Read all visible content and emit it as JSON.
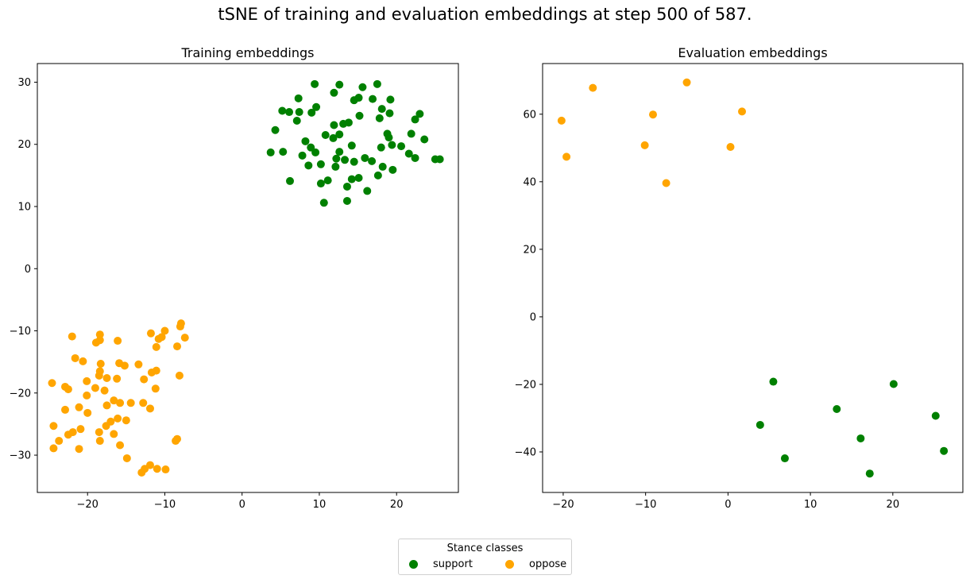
{
  "figure": {
    "suptitle": "tSNE of training and evaluation embeddings at step 500 of 587."
  },
  "legend": {
    "title": "Stance classes",
    "entries": [
      {
        "label": "support",
        "color": "#008000"
      },
      {
        "label": "oppose",
        "color": "#FFA500"
      }
    ]
  },
  "chart_data": [
    {
      "type": "scatter",
      "title": "Training embeddings",
      "xlim": [
        -26.5,
        28
      ],
      "ylim": [
        -36,
        33
      ],
      "xticks": [
        -20,
        -10,
        0,
        10,
        20
      ],
      "yticks": [
        -30,
        -20,
        -10,
        0,
        10,
        20,
        30
      ],
      "grid": false,
      "series": [
        {
          "name": "support",
          "color": "#008000",
          "points": [
            [
              9.4,
              29.7
            ],
            [
              12.6,
              29.6
            ],
            [
              15.6,
              29.2
            ],
            [
              17.5,
              29.7
            ],
            [
              11.9,
              28.3
            ],
            [
              7.3,
              27.4
            ],
            [
              14.5,
              27.1
            ],
            [
              15.1,
              27.5
            ],
            [
              16.9,
              27.3
            ],
            [
              19.2,
              27.2
            ],
            [
              5.2,
              25.4
            ],
            [
              6.1,
              25.2
            ],
            [
              7.4,
              25.2
            ],
            [
              9.0,
              25.1
            ],
            [
              9.6,
              26.0
            ],
            [
              18.1,
              25.7
            ],
            [
              19.1,
              25.0
            ],
            [
              23.0,
              24.9
            ],
            [
              15.2,
              24.6
            ],
            [
              17.8,
              24.2
            ],
            [
              7.1,
              23.8
            ],
            [
              4.3,
              22.3
            ],
            [
              13.1,
              23.3
            ],
            [
              13.8,
              23.5
            ],
            [
              11.9,
              23.1
            ],
            [
              22.4,
              24.0
            ],
            [
              10.8,
              21.5
            ],
            [
              12.6,
              21.6
            ],
            [
              11.8,
              21.0
            ],
            [
              18.8,
              21.7
            ],
            [
              19.0,
              21.1
            ],
            [
              21.9,
              21.7
            ],
            [
              23.6,
              20.8
            ],
            [
              8.2,
              20.5
            ],
            [
              3.7,
              18.7
            ],
            [
              5.3,
              18.8
            ],
            [
              8.9,
              19.5
            ],
            [
              9.5,
              18.7
            ],
            [
              14.2,
              19.8
            ],
            [
              18.0,
              19.5
            ],
            [
              19.4,
              19.9
            ],
            [
              20.6,
              19.7
            ],
            [
              21.6,
              18.5
            ],
            [
              22.4,
              17.8
            ],
            [
              7.8,
              18.2
            ],
            [
              12.6,
              18.8
            ],
            [
              12.2,
              17.7
            ],
            [
              13.3,
              17.5
            ],
            [
              14.5,
              17.2
            ],
            [
              15.9,
              17.8
            ],
            [
              16.8,
              17.3
            ],
            [
              8.6,
              16.6
            ],
            [
              10.2,
              16.8
            ],
            [
              12.1,
              16.4
            ],
            [
              18.2,
              16.4
            ],
            [
              19.5,
              15.9
            ],
            [
              25.0,
              17.6
            ],
            [
              25.6,
              17.6
            ],
            [
              6.2,
              14.1
            ],
            [
              11.1,
              14.2
            ],
            [
              14.2,
              14.4
            ],
            [
              15.1,
              14.6
            ],
            [
              17.6,
              15.0
            ],
            [
              10.2,
              13.7
            ],
            [
              13.6,
              13.2
            ],
            [
              16.2,
              12.5
            ],
            [
              10.6,
              10.6
            ],
            [
              13.6,
              10.9
            ]
          ]
        },
        {
          "name": "oppose",
          "color": "#FFA500",
          "points": [
            [
              -7.9,
              -8.8
            ],
            [
              -8.0,
              -9.3
            ],
            [
              -10.0,
              -10.0
            ],
            [
              -18.4,
              -10.6
            ],
            [
              -11.8,
              -10.4
            ],
            [
              -7.4,
              -11.1
            ],
            [
              -22.0,
              -10.9
            ],
            [
              -10.4,
              -11.0
            ],
            [
              -10.8,
              -11.3
            ],
            [
              -18.4,
              -11.5
            ],
            [
              -18.9,
              -11.9
            ],
            [
              -16.1,
              -11.6
            ],
            [
              -11.1,
              -12.6
            ],
            [
              -8.4,
              -12.5
            ],
            [
              -21.6,
              -14.4
            ],
            [
              -20.6,
              -14.9
            ],
            [
              -15.9,
              -15.2
            ],
            [
              -15.2,
              -15.6
            ],
            [
              -13.4,
              -15.4
            ],
            [
              -18.3,
              -15.3
            ],
            [
              -11.1,
              -16.4
            ],
            [
              -11.7,
              -16.7
            ],
            [
              -18.4,
              -16.5
            ],
            [
              -18.5,
              -17.2
            ],
            [
              -17.5,
              -17.6
            ],
            [
              -16.2,
              -17.7
            ],
            [
              -8.1,
              -17.2
            ],
            [
              -12.7,
              -17.8
            ],
            [
              -20.1,
              -18.1
            ],
            [
              -24.6,
              -18.4
            ],
            [
              -19.0,
              -19.2
            ],
            [
              -22.9,
              -19.0
            ],
            [
              -22.5,
              -19.4
            ],
            [
              -17.8,
              -19.6
            ],
            [
              -11.2,
              -19.3
            ],
            [
              -20.1,
              -20.4
            ],
            [
              -16.6,
              -21.2
            ],
            [
              -17.5,
              -22.0
            ],
            [
              -15.8,
              -21.6
            ],
            [
              -14.4,
              -21.6
            ],
            [
              -12.8,
              -21.6
            ],
            [
              -21.1,
              -22.3
            ],
            [
              -22.9,
              -22.7
            ],
            [
              -11.9,
              -22.5
            ],
            [
              -20.0,
              -23.2
            ],
            [
              -16.1,
              -24.1
            ],
            [
              -15.0,
              -24.4
            ],
            [
              -17.0,
              -24.6
            ],
            [
              -24.4,
              -25.3
            ],
            [
              -17.6,
              -25.3
            ],
            [
              -20.9,
              -25.8
            ],
            [
              -21.9,
              -26.3
            ],
            [
              -22.5,
              -26.7
            ],
            [
              -18.5,
              -26.3
            ],
            [
              -16.6,
              -26.6
            ],
            [
              -23.7,
              -27.7
            ],
            [
              -18.4,
              -27.7
            ],
            [
              -8.4,
              -27.4
            ],
            [
              -8.6,
              -27.7
            ],
            [
              -24.4,
              -28.9
            ],
            [
              -21.1,
              -29.0
            ],
            [
              -15.8,
              -28.4
            ],
            [
              -14.9,
              -30.5
            ],
            [
              -11.9,
              -31.6
            ],
            [
              -11.0,
              -32.2
            ],
            [
              -12.6,
              -32.2
            ],
            [
              -13.0,
              -32.8
            ],
            [
              -9.9,
              -32.3
            ]
          ]
        }
      ]
    },
    {
      "type": "scatter",
      "title": "Evaluation embeddings",
      "xlim": [
        -22.5,
        28.5
      ],
      "ylim": [
        -52,
        75
      ],
      "xticks": [
        -20,
        -10,
        0,
        10,
        20
      ],
      "yticks": [
        -40,
        -20,
        0,
        20,
        40,
        60
      ],
      "grid": false,
      "series": [
        {
          "name": "support",
          "color": "#008000",
          "points": [
            [
              5.5,
              -19.2
            ],
            [
              20.1,
              -19.9
            ],
            [
              13.2,
              -27.3
            ],
            [
              25.2,
              -29.3
            ],
            [
              3.9,
              -32.0
            ],
            [
              16.1,
              -36.0
            ],
            [
              26.2,
              -39.7
            ],
            [
              6.9,
              -41.9
            ],
            [
              17.2,
              -46.4
            ]
          ]
        },
        {
          "name": "oppose",
          "color": "#FFA500",
          "points": [
            [
              -5.0,
              69.4
            ],
            [
              -16.4,
              67.8
            ],
            [
              1.7,
              60.8
            ],
            [
              -9.1,
              59.9
            ],
            [
              -20.2,
              58.1
            ],
            [
              -10.1,
              50.8
            ],
            [
              0.3,
              50.3
            ],
            [
              -19.6,
              47.4
            ],
            [
              -7.5,
              39.6
            ]
          ]
        }
      ]
    }
  ]
}
